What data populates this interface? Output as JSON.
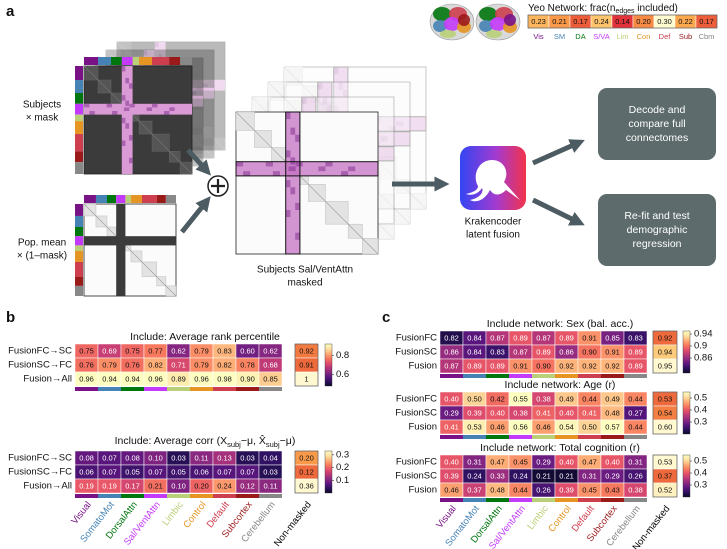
{
  "panel_labels": [
    "a",
    "b",
    "c"
  ],
  "panel_a": {
    "yeo": {
      "title_parts": [
        "Yeo Network: frac(n",
        "edges",
        " included)"
      ],
      "values": [
        0.23,
        0.21,
        0.17,
        0.24,
        0.14,
        0.2,
        0.3,
        0.22,
        0.17
      ],
      "value_labels": [
        "0.23",
        "0.21",
        "0.17",
        "0.24",
        "0.14",
        "0.20",
        "0.30",
        "0.22",
        "0.17"
      ],
      "labels": [
        "Vis",
        "SM",
        "DA",
        "S/VA",
        "Lim",
        "Con",
        "Def",
        "Sub",
        "Cbm"
      ],
      "colors": [
        "#781286",
        "#4682b4",
        "#00760e",
        "#c43afa",
        "#b9cf78",
        "#e69422",
        "#cd3e4e",
        "#9a1a1a",
        "#888888"
      ]
    },
    "subjects_mask_label": [
      "Subjects",
      "× mask"
    ],
    "pop_mean_label": [
      "Pop. mean",
      "× (1–mask)"
    ],
    "masked_label": [
      "Subjects Sal/VentAttn",
      "masked"
    ],
    "fusion_label": [
      "Krakencoder",
      "latent fusion"
    ],
    "outputs": [
      [
        "Decode and",
        "compare full",
        "connectomes"
      ],
      [
        "Re-fit and test",
        "demographic",
        "regression"
      ]
    ]
  },
  "panel_b": {
    "columns": [
      "Visual",
      "SomatoMot",
      "DorsalAttn",
      "Sal/VentAttn",
      "Limbic",
      "Control",
      "Default",
      "Subcortex",
      "Cerebellum",
      "Non-masked"
    ],
    "column_colors": [
      "#781286",
      "#4682b4",
      "#00760e",
      "#c43afa",
      "#b9cf78",
      "#e69422",
      "#cd3e4e",
      "#9a1a1a",
      "#888888",
      "#000000"
    ],
    "heatmaps": [
      {
        "title_parts": [
          "Include: Average rank percentile"
        ],
        "row_labels": [
          "FusionFC→SC",
          "FusionSC→FC",
          "Fusion→All"
        ],
        "rows": [
          {
            "values": [
              0.75,
              0.69,
              0.75,
              0.77,
              0.62,
              0.79,
              0.83,
              0.6,
              0.62,
              0.92
            ],
            "value_labels": [
              "0.75",
              "0.69",
              "0.75",
              "0.77",
              "0.62",
              "0.79",
              "0.83",
              "0.60",
              "0.62",
              "0.92"
            ]
          },
          {
            "values": [
              0.76,
              0.79,
              0.76,
              0.82,
              0.71,
              0.79,
              0.82,
              0.78,
              0.68,
              0.91
            ],
            "value_labels": [
              "0.76",
              "0.79",
              "0.76",
              "0.82",
              "0.71",
              "0.79",
              "0.82",
              "0.78",
              "0.68",
              "0.91"
            ]
          },
          {
            "values": [
              0.96,
              0.94,
              0.94,
              0.96,
              0.89,
              0.96,
              0.98,
              0.9,
              0.85,
              1
            ],
            "value_labels": [
              "0.96",
              "0.94",
              "0.94",
              "0.96",
              "0.89",
              "0.96",
              "0.98",
              "0.90",
              "0.85",
              "1"
            ]
          }
        ],
        "clim": [
          0.48,
          0.92
        ],
        "cticks": [
          0.8,
          0.6
        ]
      },
      {
        "title_parts": [
          "Include: Average corr (X",
          "subj",
          "−μ, X̂",
          "subj",
          "−μ)"
        ],
        "row_labels": [
          "FusionFC→SC",
          "FusionSC→FC",
          "Fusion→All"
        ],
        "rows": [
          {
            "values": [
              0.08,
              0.07,
              0.08,
              0.1,
              0.03,
              0.11,
              0.13,
              0.03,
              0.04,
              0.2
            ],
            "value_labels": [
              "0.08",
              "0.07",
              "0.08",
              "0.10",
              "0.03",
              "0.11",
              "0.13",
              "0.03",
              "0.04",
              "0.20"
            ]
          },
          {
            "values": [
              0.06,
              0.07,
              0.05,
              0.07,
              0.05,
              0.06,
              0.07,
              0.07,
              0.03,
              0.12
            ],
            "value_labels": [
              "0.06",
              "0.07",
              "0.05",
              "0.07",
              "0.05",
              "0.06",
              "0.07",
              "0.07",
              "0.03",
              "0.12"
            ]
          },
          {
            "values": [
              0.19,
              0.19,
              0.17,
              0.21,
              0.1,
              0.2,
              0.24,
              0.12,
              0.11,
              0.36
            ],
            "value_labels": [
              "0.19",
              "0.19",
              "0.17",
              "0.21",
              "0.10",
              "0.20",
              "0.24",
              "0.12",
              "0.11",
              "0.36"
            ]
          }
        ],
        "clim": [
          0.0,
          0.33
        ],
        "cticks": [
          0.3,
          0.2,
          0.1
        ]
      }
    ]
  },
  "panel_c": {
    "columns": [
      "Visual",
      "SomatoMot",
      "DorsalAttn",
      "Sal/VentAttn",
      "Limbic",
      "Control",
      "Default",
      "Subcortex",
      "Cerebellum",
      "Non-masked"
    ],
    "column_colors": [
      "#781286",
      "#4682b4",
      "#00760e",
      "#c43afa",
      "#b9cf78",
      "#e69422",
      "#cd3e4e",
      "#9a1a1a",
      "#888888",
      "#000000"
    ],
    "heatmaps": [
      {
        "title_parts": [
          "Include network: Sex (bal. acc.)"
        ],
        "row_labels": [
          "FusionFC",
          "FusionSC",
          "Fusion"
        ],
        "rows": [
          {
            "values": [
              0.82,
              0.84,
              0.87,
              0.89,
              0.87,
              0.89,
              0.91,
              0.85,
              0.83,
              0.92
            ],
            "value_labels": [
              "0.82",
              "0.84",
              "0.87",
              "0.89",
              "0.87",
              "0.89",
              "0.91",
              "0.85",
              "0.83",
              "0.92"
            ]
          },
          {
            "values": [
              0.86,
              0.84,
              0.83,
              0.87,
              0.89,
              0.86,
              0.9,
              0.91,
              0.89,
              0.94
            ],
            "value_labels": [
              "0.86",
              "0.84",
              "0.83",
              "0.87",
              "0.89",
              "0.86",
              "0.90",
              "0.91",
              "0.89",
              "0.94"
            ]
          },
          {
            "values": [
              0.87,
              0.89,
              0.89,
              0.91,
              0.9,
              0.92,
              0.92,
              0.92,
              0.89,
              0.95
            ],
            "value_labels": [
              "0.87",
              "0.89",
              "0.89",
              "0.91",
              "0.90",
              "0.92",
              "0.92",
              "0.92",
              "0.89",
              "0.95"
            ]
          }
        ],
        "clim": [
          0.81,
          0.95
        ],
        "cticks": [
          0.94,
          0.9,
          0.86
        ]
      },
      {
        "title_parts": [
          "Include network: Age (r)"
        ],
        "row_labels": [
          "FusionFC",
          "FusionSC",
          "Fusion"
        ],
        "rows": [
          {
            "values": [
              0.4,
              0.5,
              0.42,
              0.55,
              0.38,
              0.49,
              0.44,
              0.49,
              0.44,
              0.53
            ],
            "value_labels": [
              "0.40",
              "0.50",
              "0.42",
              "0.55",
              "0.38",
              "0.49",
              "0.44",
              "0.49",
              "0.44",
              "0.53"
            ]
          },
          {
            "values": [
              0.29,
              0.39,
              0.4,
              0.38,
              0.41,
              0.4,
              0.41,
              0.48,
              0.27,
              0.54
            ],
            "value_labels": [
              "0.29",
              "0.39",
              "0.40",
              "0.38",
              "0.41",
              "0.40",
              "0.41",
              "0.48",
              "0.27",
              "0.54"
            ]
          },
          {
            "values": [
              0.41,
              0.53,
              0.46,
              0.56,
              0.46,
              0.54,
              0.5,
              0.57,
              0.44,
              0.6
            ],
            "value_labels": [
              "0.41",
              "0.53",
              "0.46",
              "0.56",
              "0.46",
              "0.54",
              "0.50",
              "0.57",
              "0.44",
              "0.60"
            ]
          }
        ],
        "clim": [
          0.2,
          0.55
        ],
        "cticks": [
          0.5,
          0.4,
          0.3
        ]
      },
      {
        "title_parts": [
          "Include network: Total cognition (r)"
        ],
        "row_labels": [
          "FusionFC",
          "FusionSC",
          "Fusion"
        ],
        "rows": [
          {
            "values": [
              0.4,
              0.31,
              0.47,
              0.45,
              0.29,
              0.4,
              0.47,
              0.4,
              0.31,
              0.53
            ],
            "value_labels": [
              "0.40",
              "0.31",
              "0.47",
              "0.45",
              "0.29",
              "0.40",
              "0.47",
              "0.40",
              "0.31",
              "0.53"
            ]
          },
          {
            "values": [
              0.39,
              0.24,
              0.33,
              0.24,
              0.21,
              0.21,
              0.31,
              0.29,
              0.26,
              0.37
            ],
            "value_labels": [
              "0.39",
              "0.24",
              "0.33",
              "0.24",
              "0.21",
              "0.21",
              "0.31",
              "0.29",
              "0.26",
              "0.37"
            ]
          },
          {
            "values": [
              0.46,
              0.37,
              0.48,
              0.44,
              0.26,
              0.39,
              0.45,
              0.43,
              0.38,
              0.52
            ],
            "value_labels": [
              "0.46",
              "0.37",
              "0.48",
              "0.44",
              "0.26",
              "0.39",
              "0.45",
              "0.43",
              "0.38",
              "0.52"
            ]
          }
        ],
        "clim": [
          0.2,
          0.55
        ],
        "cticks": [
          0.5,
          0.4,
          0.3
        ]
      }
    ]
  }
}
